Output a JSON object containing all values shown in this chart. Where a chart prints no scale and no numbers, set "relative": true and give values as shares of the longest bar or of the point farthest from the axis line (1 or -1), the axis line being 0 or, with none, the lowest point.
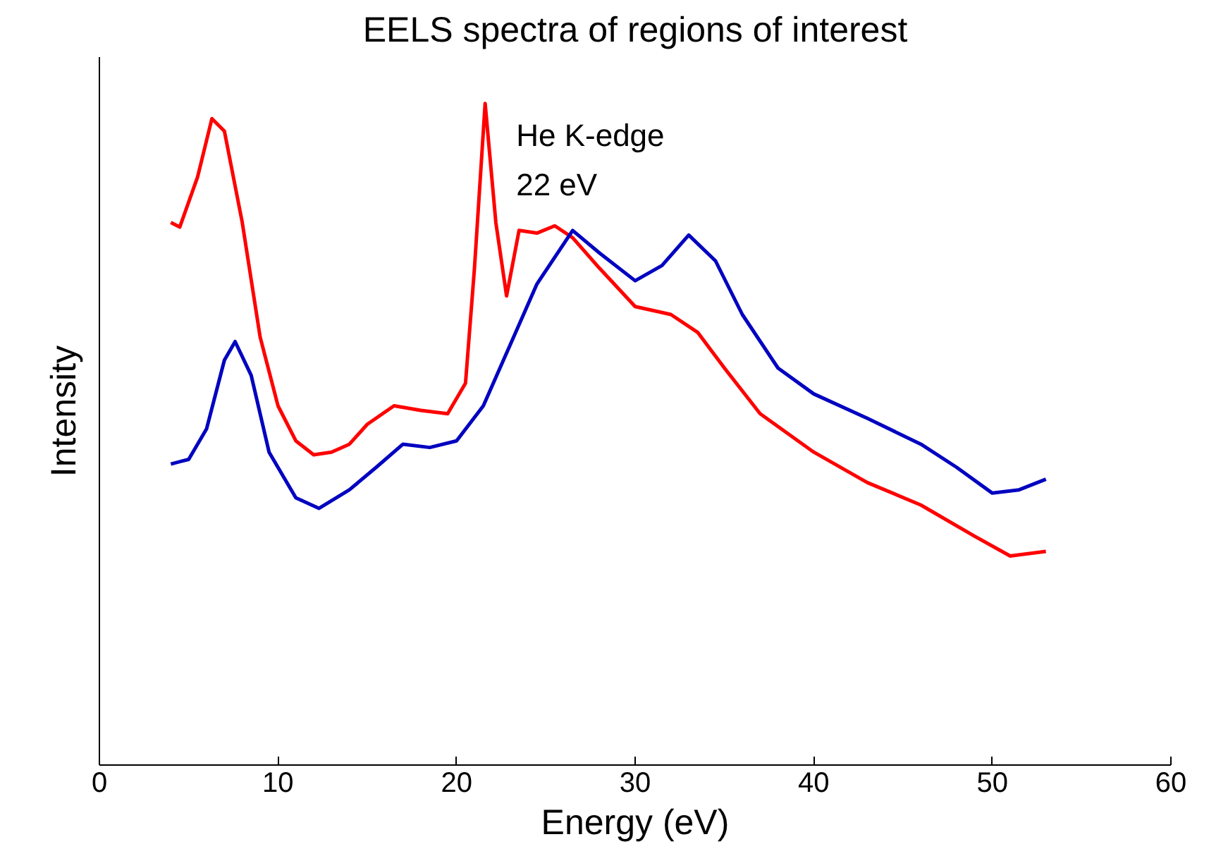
{
  "chart_data": {
    "type": "line",
    "title": "EELS spectra of regions of interest",
    "xlabel": "Energy (eV)",
    "ylabel": "Intensity",
    "relative": true,
    "xlim": [
      0,
      60
    ],
    "xticks": [
      0,
      10,
      20,
      30,
      40,
      50,
      60
    ],
    "grid": false,
    "marker": "none",
    "line_style": "solid",
    "annotations": [
      {
        "text": "He K-edge\n22 eV",
        "x": 21.6,
        "y": 1.0
      }
    ],
    "series": [
      {
        "color": "#ff0000",
        "x": [
          4,
          4.5,
          5.5,
          6.3,
          7,
          8,
          9,
          10,
          11,
          12,
          13,
          14,
          15,
          16.5,
          18,
          19.5,
          20.5,
          21,
          21.6,
          22.2,
          22.8,
          23.5,
          24.5,
          25.5,
          26.5,
          28,
          30,
          32,
          33.5,
          35,
          37,
          40,
          43,
          46,
          49,
          51,
          53
        ],
        "values": [
          0.82,
          0.813,
          0.889,
          0.977,
          0.958,
          0.82,
          0.647,
          0.543,
          0.49,
          0.469,
          0.473,
          0.485,
          0.515,
          0.543,
          0.536,
          0.531,
          0.577,
          0.75,
          1.0,
          0.82,
          0.709,
          0.808,
          0.804,
          0.815,
          0.797,
          0.751,
          0.693,
          0.681,
          0.654,
          0.6,
          0.531,
          0.473,
          0.427,
          0.393,
          0.346,
          0.316,
          0.323
        ]
      },
      {
        "color": "#0000c0",
        "x": [
          4,
          5,
          6,
          7,
          7.6,
          8.5,
          9.5,
          11,
          12.3,
          14,
          15.5,
          17,
          18.5,
          20,
          21.5,
          23,
          24.5,
          26.5,
          28,
          30,
          31.5,
          33,
          34.5,
          36,
          38,
          40,
          43,
          46,
          48,
          50,
          51.5,
          53
        ],
        "values": [
          0.455,
          0.462,
          0.508,
          0.612,
          0.64,
          0.589,
          0.473,
          0.404,
          0.388,
          0.416,
          0.45,
          0.485,
          0.48,
          0.49,
          0.543,
          0.635,
          0.727,
          0.808,
          0.774,
          0.732,
          0.755,
          0.801,
          0.762,
          0.681,
          0.6,
          0.561,
          0.524,
          0.485,
          0.45,
          0.411,
          0.416,
          0.432
        ]
      }
    ]
  }
}
